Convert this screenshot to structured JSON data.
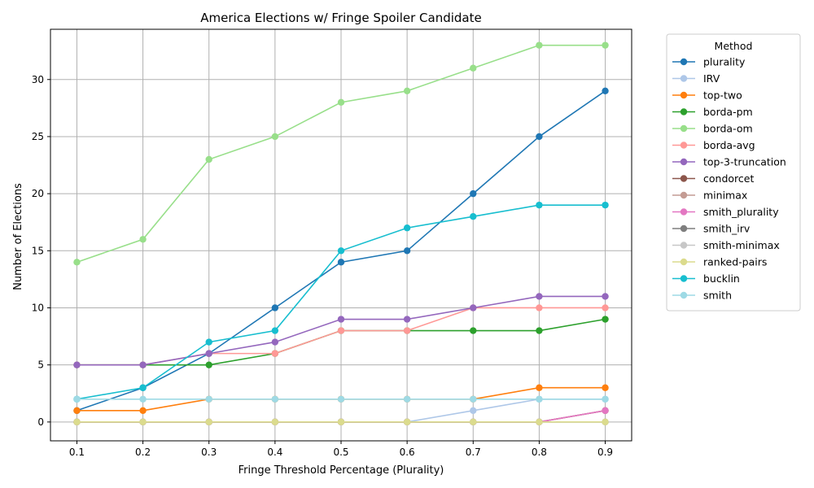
{
  "chart_data": {
    "type": "line",
    "title": "America Elections w/ Fringe Spoiler Candidate",
    "xlabel": "Fringe Threshold Percentage (Plurality)",
    "ylabel": "Number of Elections",
    "x": [
      0.1,
      0.2,
      0.3,
      0.4,
      0.5,
      0.6,
      0.7,
      0.8,
      0.9
    ],
    "x_tick_labels": [
      "0.1",
      "0.2",
      "0.3",
      "0.4",
      "0.5",
      "0.6",
      "0.7",
      "0.8",
      "0.9"
    ],
    "y_ticks": [
      0,
      5,
      10,
      15,
      20,
      25,
      30
    ],
    "y_tick_labels": [
      "0",
      "5",
      "10",
      "15",
      "20",
      "25",
      "30"
    ],
    "xlim": [
      0.06,
      0.94
    ],
    "ylim": [
      -1.65,
      34.4
    ],
    "grid": true,
    "legend_title": "Method",
    "legend_placement": "outside-right",
    "series": [
      {
        "name": "plurality",
        "color": "#1f77b4",
        "values": [
          1,
          3,
          6,
          10,
          14,
          15,
          20,
          25,
          29
        ]
      },
      {
        "name": "IRV",
        "color": "#aec7e8",
        "values": [
          0,
          0,
          0,
          0,
          0,
          0,
          1,
          2,
          2
        ]
      },
      {
        "name": "top-two",
        "color": "#ff7f0e",
        "values": [
          1,
          1,
          2,
          2,
          2,
          2,
          2,
          3,
          3
        ]
      },
      {
        "name": "borda-pm",
        "color": "#2ca02c",
        "values": [
          5,
          5,
          5,
          6,
          8,
          8,
          8,
          8,
          9
        ]
      },
      {
        "name": "borda-om",
        "color": "#98df8a",
        "values": [
          14,
          16,
          23,
          25,
          28,
          29,
          31,
          33,
          33
        ]
      },
      {
        "name": "borda-avg",
        "color": "#ff9896",
        "values": [
          5,
          5,
          6,
          6,
          8,
          8,
          10,
          10,
          10
        ]
      },
      {
        "name": "top-3-truncation",
        "color": "#9467bd",
        "values": [
          5,
          5,
          6,
          7,
          9,
          9,
          10,
          11,
          11
        ]
      },
      {
        "name": "condorcet",
        "color": "#8c564b",
        "values": [
          0,
          0,
          0,
          0,
          0,
          0,
          0,
          0,
          1
        ]
      },
      {
        "name": "minimax",
        "color": "#c49c94",
        "values": [
          0,
          0,
          0,
          0,
          0,
          0,
          0,
          0,
          1
        ]
      },
      {
        "name": "smith_plurality",
        "color": "#e377c2",
        "values": [
          0,
          0,
          0,
          0,
          0,
          0,
          0,
          0,
          1
        ]
      },
      {
        "name": "smith_irv",
        "color": "#7f7f7f",
        "values": [
          0,
          0,
          0,
          0,
          0,
          0,
          0,
          0,
          0
        ]
      },
      {
        "name": "smith-minimax",
        "color": "#c7c7c7",
        "values": [
          0,
          0,
          0,
          0,
          0,
          0,
          0,
          0,
          0
        ]
      },
      {
        "name": "ranked-pairs",
        "color": "#dbdb8d",
        "values": [
          0,
          0,
          0,
          0,
          0,
          0,
          0,
          0,
          0
        ]
      },
      {
        "name": "bucklin",
        "color": "#17becf",
        "values": [
          2,
          3,
          7,
          8,
          15,
          17,
          18,
          19,
          19
        ]
      },
      {
        "name": "smith",
        "color": "#9edae5",
        "values": [
          2,
          2,
          2,
          2,
          2,
          2,
          2,
          2,
          2
        ]
      }
    ]
  }
}
